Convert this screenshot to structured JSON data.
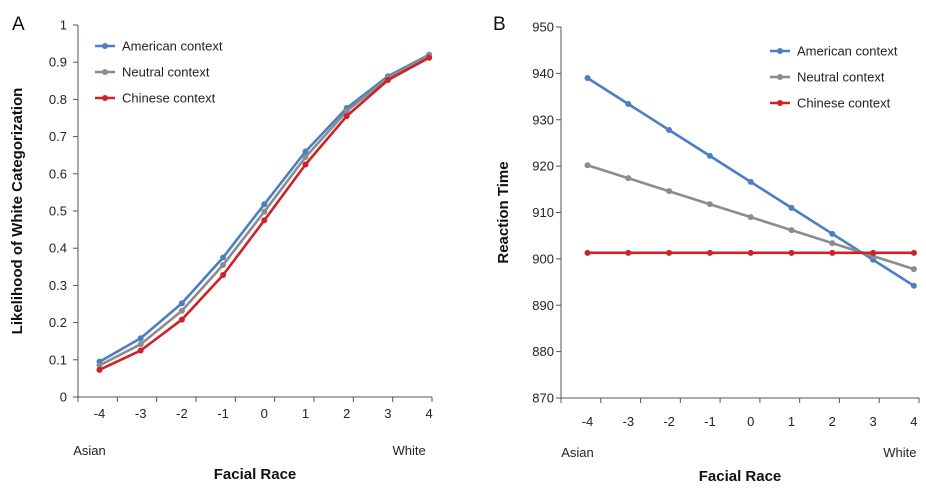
{
  "chart_data": [
    {
      "panel": "A",
      "type": "line",
      "xlabel": "Facial Race",
      "ylabel": "Likelihood of White Categorization",
      "x": [
        -4,
        -3,
        -2,
        -1,
        0,
        1,
        2,
        3,
        4
      ],
      "x_end_labels": [
        "Asian",
        "White"
      ],
      "ylim": [
        0,
        1
      ],
      "yticks": [
        0,
        0.1,
        0.2,
        0.3,
        0.4,
        0.5,
        0.6,
        0.7,
        0.8,
        0.9,
        1
      ],
      "grid": false,
      "legend_position": "top-left",
      "series": [
        {
          "name": "American context",
          "color": "#4a7fc1",
          "values": [
            0.095,
            0.158,
            0.252,
            0.375,
            0.518,
            0.66,
            0.777,
            0.862,
            0.92
          ]
        },
        {
          "name": "Neutral context",
          "color": "#8c8c8c",
          "values": [
            0.085,
            0.142,
            0.232,
            0.355,
            0.498,
            0.645,
            0.768,
            0.858,
            0.918
          ]
        },
        {
          "name": "Chinese context",
          "color": "#cc2229",
          "values": [
            0.073,
            0.125,
            0.208,
            0.328,
            0.475,
            0.625,
            0.755,
            0.852,
            0.912
          ]
        }
      ]
    },
    {
      "panel": "B",
      "type": "line",
      "xlabel": "Facial Race",
      "ylabel": "Reaction Time",
      "x": [
        -4,
        -3,
        -2,
        -1,
        0,
        1,
        2,
        3,
        4
      ],
      "x_end_labels": [
        "Asian",
        "White"
      ],
      "ylim": [
        870,
        950
      ],
      "yticks": [
        870,
        880,
        890,
        900,
        910,
        920,
        930,
        940,
        950
      ],
      "grid": false,
      "legend_position": "top-right",
      "series": [
        {
          "name": "American context",
          "color": "#4a7fc1",
          "values": [
            939,
            933.4,
            927.8,
            922.2,
            916.6,
            911,
            905.4,
            899.8,
            894.2
          ]
        },
        {
          "name": "Neutral context",
          "color": "#8c8c8c",
          "values": [
            920.2,
            917.4,
            914.6,
            911.8,
            909,
            906.2,
            903.4,
            900.6,
            897.8
          ]
        },
        {
          "name": "Chinese context",
          "color": "#cc2229",
          "values": [
            901.3,
            901.3,
            901.3,
            901.3,
            901.3,
            901.3,
            901.3,
            901.3,
            901.3
          ]
        }
      ]
    }
  ]
}
